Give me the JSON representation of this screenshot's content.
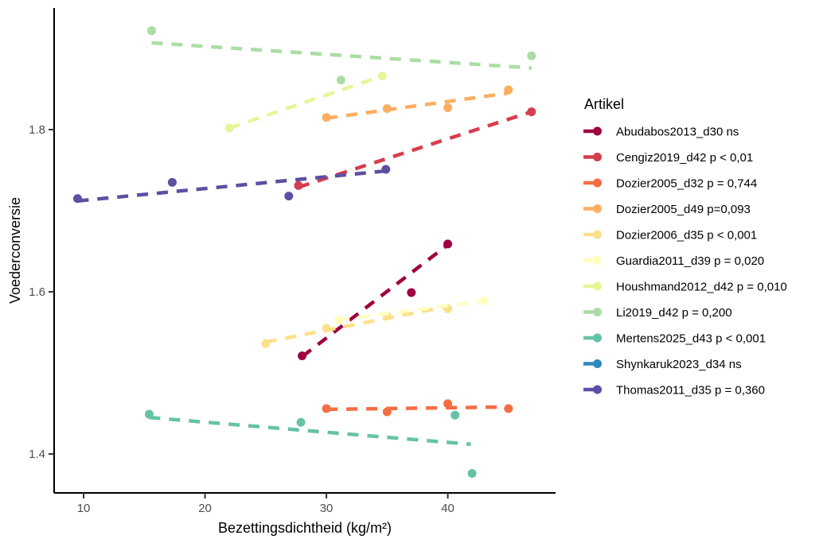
{
  "chart_data": {
    "type": "scatter",
    "title": "",
    "xlabel": "Bezettingsdichtheid (kg/m²)",
    "ylabel": "Voederconversie",
    "xlim": [
      7.57,
      48.88
    ],
    "ylim": [
      1.352,
      1.95
    ],
    "x_ticks": [
      10,
      20,
      30,
      40
    ],
    "y_ticks": [
      1.4,
      1.6,
      1.8
    ],
    "x_tick_labels": [
      "10",
      "20",
      "30",
      "40"
    ],
    "y_tick_labels": [
      "1.4",
      "1.6",
      "1.8"
    ],
    "grid": false,
    "background": "#ffffff",
    "axis_line_color": "#000000",
    "tick_label_color": "#4d4d4d",
    "legend_title": "Artikel",
    "legend_position": "right",
    "line_style": "dashed",
    "series": [
      {
        "name": "Abudabos2013_d30 ns",
        "color": "#9E0142",
        "visible": true,
        "points": [
          [
            28.0,
            1.521
          ],
          [
            37.0,
            1.599
          ],
          [
            40.0,
            1.659
          ]
        ],
        "trend": [
          [
            28.0,
            1.52
          ],
          [
            40.0,
            1.658
          ]
        ]
      },
      {
        "name": "Cengiz2019_d42 p < 0,01",
        "color": "#D53E4F",
        "visible": true,
        "points": [
          [
            27.7,
            1.731
          ],
          [
            46.9,
            1.822
          ]
        ],
        "trend": [
          [
            27.7,
            1.729
          ],
          [
            46.9,
            1.822
          ]
        ]
      },
      {
        "name": "Dozier2005_d32 p = 0,744",
        "color": "#F46D43",
        "visible": true,
        "points": [
          [
            30.0,
            1.456
          ],
          [
            35.0,
            1.452
          ],
          [
            40.0,
            1.462
          ],
          [
            45.0,
            1.456
          ]
        ],
        "trend": [
          [
            30.0,
            1.455
          ],
          [
            45.0,
            1.458
          ]
        ]
      },
      {
        "name": "Dozier2005_d49 p=0,093",
        "color": "#FDAE61",
        "visible": true,
        "points": [
          [
            30.0,
            1.815
          ],
          [
            35.0,
            1.826
          ],
          [
            40.0,
            1.827
          ],
          [
            45.0,
            1.849
          ]
        ],
        "trend": [
          [
            30.0,
            1.814
          ],
          [
            45.0,
            1.845
          ]
        ]
      },
      {
        "name": "Dozier2006_d35 p < 0,001",
        "color": "#FEE08B",
        "visible": true,
        "points": [
          [
            25.0,
            1.536
          ],
          [
            30.0,
            1.555
          ],
          [
            35.0,
            1.57
          ],
          [
            40.0,
            1.579
          ]
        ],
        "trend": [
          [
            25.0,
            1.538
          ],
          [
            40.0,
            1.582
          ]
        ]
      },
      {
        "name": "Guardia2011_d39 p = 0,020",
        "color": "#FFFFBF",
        "visible": true,
        "points": [
          [
            31.0,
            1.565
          ],
          [
            43.0,
            1.589
          ]
        ],
        "trend": [
          [
            31.0,
            1.565
          ],
          [
            43.0,
            1.589
          ]
        ]
      },
      {
        "name": "Houshmand2012_d42 p = 0,010",
        "color": "#E6F598",
        "visible": true,
        "points": [
          [
            22.0,
            1.802
          ],
          [
            34.6,
            1.866
          ]
        ],
        "trend": [
          [
            22.0,
            1.802
          ],
          [
            34.6,
            1.866
          ]
        ]
      },
      {
        "name": "Li2019_d42 p = 0,200",
        "color": "#ABDDA4",
        "visible": true,
        "points": [
          [
            15.6,
            1.922
          ],
          [
            31.2,
            1.861
          ],
          [
            46.9,
            1.891
          ]
        ],
        "trend": [
          [
            15.6,
            1.907
          ],
          [
            46.9,
            1.876
          ]
        ]
      },
      {
        "name": "Mertens2025_d43 p < 0,001",
        "color": "#66C2A5",
        "visible": true,
        "points": [
          [
            15.4,
            1.449
          ],
          [
            27.9,
            1.439
          ],
          [
            40.6,
            1.448
          ],
          [
            42.0,
            1.376
          ]
        ],
        "trend": [
          [
            15.4,
            1.445
          ],
          [
            41.9,
            1.412
          ]
        ]
      },
      {
        "name": "Shynkaruk2023_d34 ns",
        "color": "#3288BD",
        "visible": false,
        "points": [],
        "trend": null
      },
      {
        "name": "Thomas2011_d35 p = 0,360",
        "color": "#5E4FA2",
        "visible": true,
        "points": [
          [
            9.5,
            1.715
          ],
          [
            17.3,
            1.735
          ],
          [
            26.9,
            1.718
          ],
          [
            34.9,
            1.751
          ]
        ],
        "trend": [
          [
            9.5,
            1.712
          ],
          [
            34.9,
            1.749
          ]
        ]
      }
    ]
  }
}
